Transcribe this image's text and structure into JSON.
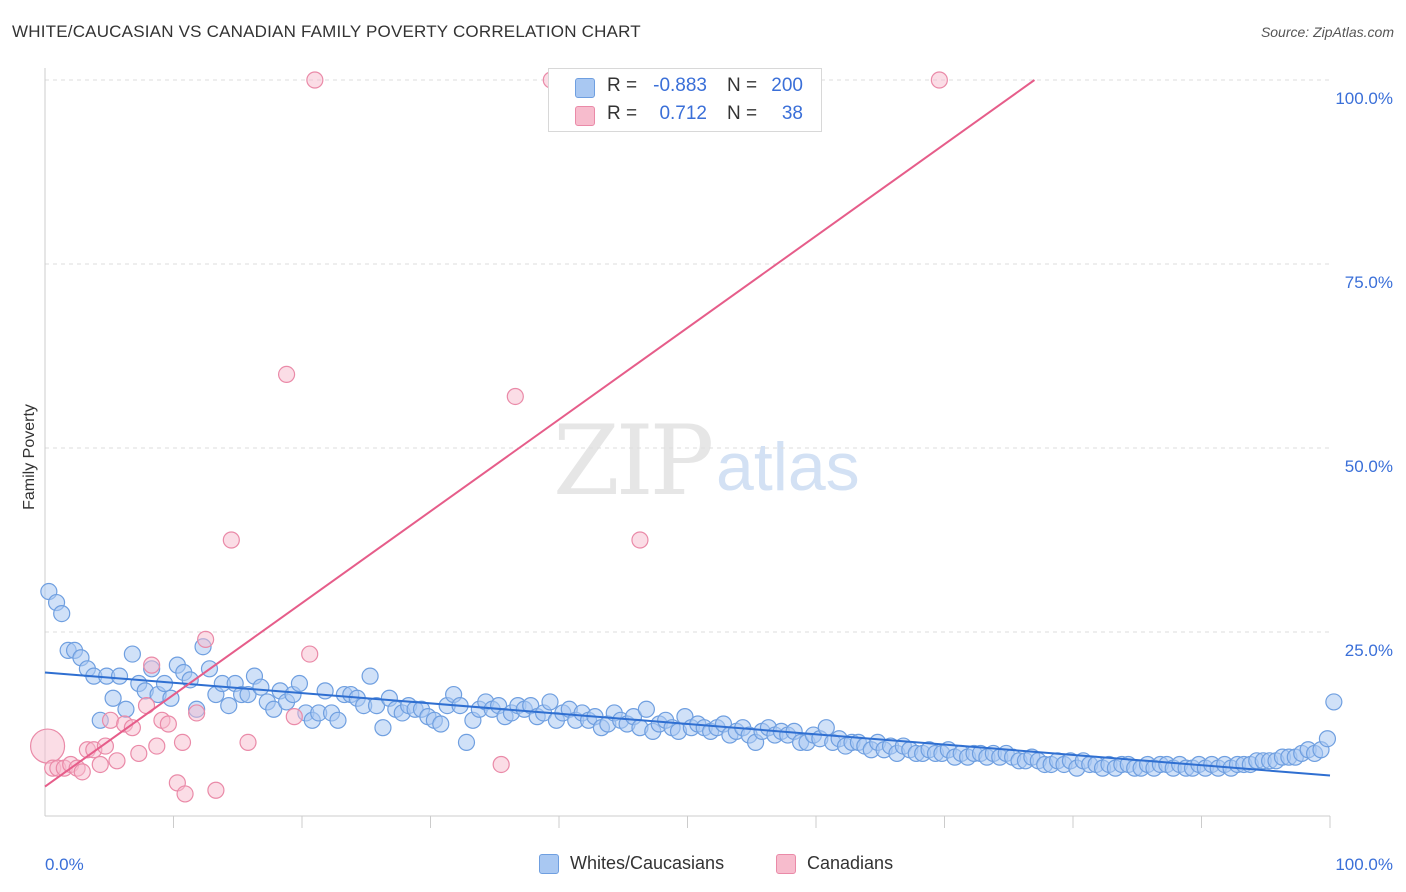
{
  "title": "WHITE/CAUCASIAN VS CANADIAN FAMILY POVERTY CORRELATION CHART",
  "source": "Source: ZipAtlas.com",
  "watermark": {
    "zip": "ZIP",
    "atlas": "atlas"
  },
  "legend": {
    "rows": [
      {
        "r_label": "R =",
        "r_value": "-0.883",
        "n_label": "N =",
        "n_value": "200"
      },
      {
        "r_label": "R =",
        "r_value": "0.712",
        "n_label": "N =",
        "n_value": "38"
      }
    ]
  },
  "bottom_legend": [
    "Whites/Caucasians",
    "Canadians"
  ],
  "colors": {
    "blue_fill": "#a9c8f2",
    "blue_stroke": "#6f9fe0",
    "blue_line": "#2f6fd1",
    "pink_fill": "#f7bccd",
    "pink_stroke": "#ea8aa8",
    "pink_line": "#e65d8a",
    "tick_text": "#3a6fd8",
    "grid": "#dddddd"
  },
  "chart_data": {
    "type": "scatter",
    "title": "WHITE/CAUCASIAN VS CANADIAN FAMILY POVERTY CORRELATION CHART",
    "xlabel": "",
    "ylabel": "Family Poverty",
    "xlim": [
      0,
      100
    ],
    "ylim": [
      0,
      100
    ],
    "x_tick_labels": [
      "0.0%",
      "100.0%"
    ],
    "y_tick_labels": [
      "100.0%",
      "75.0%",
      "50.0%",
      "25.0%"
    ],
    "y_ticks": [
      100,
      75,
      50,
      25
    ],
    "grid": true,
    "legend_position": "top-center",
    "series": [
      {
        "name": "Whites/Caucasians",
        "r": -0.883,
        "n": 200,
        "trend": {
          "x": [
            0,
            100
          ],
          "y": [
            19.5,
            5.5
          ]
        },
        "points": [
          [
            0.3,
            30.5
          ],
          [
            0.9,
            29
          ],
          [
            1.3,
            27.5
          ],
          [
            1.8,
            22.5
          ],
          [
            2.3,
            22.5
          ],
          [
            2.8,
            21.5
          ],
          [
            3.3,
            20
          ],
          [
            3.8,
            19
          ],
          [
            4.3,
            13
          ],
          [
            4.8,
            19
          ],
          [
            5.3,
            16
          ],
          [
            5.8,
            19
          ],
          [
            6.3,
            14.5
          ],
          [
            6.8,
            22
          ],
          [
            7.3,
            18
          ],
          [
            7.8,
            17
          ],
          [
            8.3,
            20
          ],
          [
            8.8,
            16.5
          ],
          [
            9.3,
            18
          ],
          [
            9.8,
            16
          ],
          [
            10.3,
            20.5
          ],
          [
            10.8,
            19.5
          ],
          [
            11.3,
            18.5
          ],
          [
            11.8,
            14.5
          ],
          [
            12.3,
            23
          ],
          [
            12.8,
            20
          ],
          [
            13.3,
            16.5
          ],
          [
            13.8,
            18
          ],
          [
            14.3,
            15
          ],
          [
            14.8,
            18
          ],
          [
            15.3,
            16.5
          ],
          [
            15.8,
            16.5
          ],
          [
            16.3,
            19
          ],
          [
            16.8,
            17.5
          ],
          [
            17.3,
            15.5
          ],
          [
            17.8,
            14.5
          ],
          [
            18.3,
            17
          ],
          [
            18.8,
            15.5
          ],
          [
            19.3,
            16.5
          ],
          [
            19.8,
            18
          ],
          [
            20.3,
            14
          ],
          [
            20.8,
            13
          ],
          [
            21.3,
            14
          ],
          [
            21.8,
            17
          ],
          [
            22.3,
            14
          ],
          [
            22.8,
            13
          ],
          [
            23.3,
            16.5
          ],
          [
            23.8,
            16.5
          ],
          [
            24.3,
            16
          ],
          [
            24.8,
            15
          ],
          [
            25.3,
            19
          ],
          [
            25.8,
            15
          ],
          [
            26.3,
            12
          ],
          [
            26.8,
            16
          ],
          [
            27.3,
            14.5
          ],
          [
            27.8,
            14
          ],
          [
            28.3,
            15
          ],
          [
            28.8,
            14.5
          ],
          [
            29.3,
            14.5
          ],
          [
            29.8,
            13.5
          ],
          [
            30.3,
            13
          ],
          [
            30.8,
            12.5
          ],
          [
            31.3,
            15
          ],
          [
            31.8,
            16.5
          ],
          [
            32.3,
            15
          ],
          [
            32.8,
            10
          ],
          [
            33.3,
            13
          ],
          [
            33.8,
            14.5
          ],
          [
            34.3,
            15.5
          ],
          [
            34.8,
            14.5
          ],
          [
            35.3,
            15
          ],
          [
            35.8,
            13.5
          ],
          [
            36.3,
            14
          ],
          [
            36.8,
            15
          ],
          [
            37.3,
            14.5
          ],
          [
            37.8,
            15
          ],
          [
            38.3,
            13.5
          ],
          [
            38.8,
            14
          ],
          [
            39.3,
            15.5
          ],
          [
            39.8,
            13
          ],
          [
            40.3,
            14
          ],
          [
            40.8,
            14.5
          ],
          [
            41.3,
            13
          ],
          [
            41.8,
            14
          ],
          [
            42.3,
            13
          ],
          [
            42.8,
            13.5
          ],
          [
            43.3,
            12
          ],
          [
            43.8,
            12.5
          ],
          [
            44.3,
            14
          ],
          [
            44.8,
            13
          ],
          [
            45.3,
            12.5
          ],
          [
            45.8,
            13.5
          ],
          [
            46.3,
            12
          ],
          [
            46.8,
            14.5
          ],
          [
            47.3,
            11.5
          ],
          [
            47.8,
            12.5
          ],
          [
            48.3,
            13
          ],
          [
            48.8,
            12
          ],
          [
            49.3,
            11.5
          ],
          [
            49.8,
            13.5
          ],
          [
            50.3,
            12
          ],
          [
            50.8,
            12.5
          ],
          [
            51.3,
            12
          ],
          [
            51.8,
            11.5
          ],
          [
            52.3,
            12
          ],
          [
            52.8,
            12.5
          ],
          [
            53.3,
            11
          ],
          [
            53.8,
            11.5
          ],
          [
            54.3,
            12
          ],
          [
            54.8,
            11
          ],
          [
            55.3,
            10
          ],
          [
            55.8,
            11.5
          ],
          [
            56.3,
            12
          ],
          [
            56.8,
            11
          ],
          [
            57.3,
            11.5
          ],
          [
            57.8,
            11
          ],
          [
            58.3,
            11.5
          ],
          [
            58.8,
            10
          ],
          [
            59.3,
            10
          ],
          [
            59.8,
            11
          ],
          [
            60.3,
            10.5
          ],
          [
            60.8,
            12
          ],
          [
            61.3,
            10
          ],
          [
            61.8,
            10.5
          ],
          [
            62.3,
            9.5
          ],
          [
            62.8,
            10
          ],
          [
            63.3,
            10
          ],
          [
            63.8,
            9.5
          ],
          [
            64.3,
            9
          ],
          [
            64.8,
            10
          ],
          [
            65.3,
            9
          ],
          [
            65.8,
            9.5
          ],
          [
            66.3,
            8.5
          ],
          [
            66.8,
            9.5
          ],
          [
            67.3,
            9
          ],
          [
            67.8,
            8.5
          ],
          [
            68.3,
            8.5
          ],
          [
            68.8,
            9
          ],
          [
            69.3,
            8.5
          ],
          [
            69.8,
            8.5
          ],
          [
            70.3,
            9
          ],
          [
            70.8,
            8
          ],
          [
            71.3,
            8.5
          ],
          [
            71.8,
            8
          ],
          [
            72.3,
            8.5
          ],
          [
            72.8,
            8.5
          ],
          [
            73.3,
            8
          ],
          [
            73.8,
            8.5
          ],
          [
            74.3,
            8
          ],
          [
            74.8,
            8.5
          ],
          [
            75.3,
            8
          ],
          [
            75.8,
            7.5
          ],
          [
            76.3,
            7.5
          ],
          [
            76.8,
            8
          ],
          [
            77.3,
            7.5
          ],
          [
            77.8,
            7
          ],
          [
            78.3,
            7
          ],
          [
            78.8,
            7.5
          ],
          [
            79.3,
            7
          ],
          [
            79.8,
            7.5
          ],
          [
            80.3,
            6.5
          ],
          [
            80.8,
            7.5
          ],
          [
            81.3,
            7
          ],
          [
            81.8,
            7
          ],
          [
            82.3,
            6.5
          ],
          [
            82.8,
            7
          ],
          [
            83.3,
            6.5
          ],
          [
            83.8,
            7
          ],
          [
            84.3,
            7
          ],
          [
            84.8,
            6.5
          ],
          [
            85.3,
            6.5
          ],
          [
            85.8,
            7
          ],
          [
            86.3,
            6.5
          ],
          [
            86.8,
            7
          ],
          [
            87.3,
            7
          ],
          [
            87.8,
            6.5
          ],
          [
            88.3,
            7
          ],
          [
            88.8,
            6.5
          ],
          [
            89.3,
            6.5
          ],
          [
            89.8,
            7
          ],
          [
            90.3,
            6.5
          ],
          [
            90.8,
            7
          ],
          [
            91.3,
            6.5
          ],
          [
            91.8,
            7
          ],
          [
            92.3,
            6.5
          ],
          [
            92.8,
            7
          ],
          [
            93.3,
            7
          ],
          [
            93.8,
            7
          ],
          [
            94.3,
            7.5
          ],
          [
            94.8,
            7.5
          ],
          [
            95.3,
            7.5
          ],
          [
            95.8,
            7.5
          ],
          [
            96.3,
            8
          ],
          [
            96.8,
            8
          ],
          [
            97.3,
            8
          ],
          [
            97.8,
            8.5
          ],
          [
            98.3,
            9
          ],
          [
            98.8,
            8.5
          ],
          [
            99.3,
            9
          ],
          [
            99.8,
            10.5
          ],
          [
            100.3,
            15.5
          ]
        ]
      },
      {
        "name": "Canadians",
        "r": 0.712,
        "n": 38,
        "trend": {
          "x": [
            0,
            77
          ],
          "y": [
            4,
            100
          ]
        },
        "points": [
          [
            0.2,
            9.5
          ],
          [
            0.6,
            6.5
          ],
          [
            1,
            6.5
          ],
          [
            1.5,
            6.5
          ],
          [
            2,
            7
          ],
          [
            2.5,
            6.5
          ],
          [
            2.9,
            6
          ],
          [
            3.3,
            9
          ],
          [
            3.8,
            9
          ],
          [
            4.3,
            7
          ],
          [
            4.7,
            9.5
          ],
          [
            5.1,
            13
          ],
          [
            5.6,
            7.5
          ],
          [
            6.2,
            12.5
          ],
          [
            6.8,
            12
          ],
          [
            7.3,
            8.5
          ],
          [
            7.9,
            15
          ],
          [
            8.3,
            20.5
          ],
          [
            8.7,
            9.5
          ],
          [
            9.1,
            13
          ],
          [
            9.6,
            12.5
          ],
          [
            10.3,
            4.5
          ],
          [
            10.7,
            10
          ],
          [
            10.9,
            3
          ],
          [
            11.8,
            14
          ],
          [
            12.5,
            24
          ],
          [
            13.3,
            3.5
          ],
          [
            14.5,
            37.5
          ],
          [
            15.8,
            10
          ],
          [
            18.8,
            60
          ],
          [
            19.4,
            13.5
          ],
          [
            20.6,
            22
          ],
          [
            21,
            100
          ],
          [
            36.6,
            57
          ],
          [
            35.5,
            7
          ],
          [
            39.4,
            100
          ],
          [
            46.3,
            37.5
          ],
          [
            69.6,
            100
          ]
        ]
      }
    ]
  }
}
